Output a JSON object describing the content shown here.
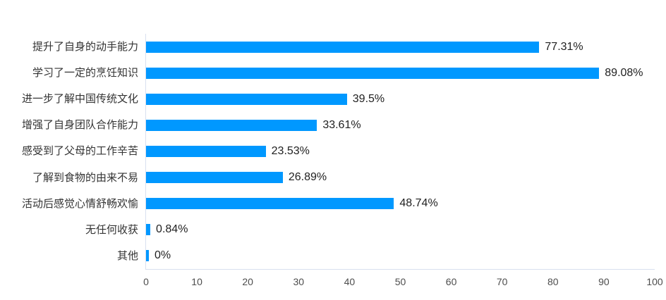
{
  "chart_data": {
    "type": "bar",
    "orientation": "horizontal",
    "title": "",
    "xlabel": "",
    "ylabel": "",
    "categories": [
      "提升了自身的动手能力",
      "学习了一定的烹饪知识",
      "进一步了解中国传统文化",
      "增强了自身团队合作能力",
      "感受到了父母的工作辛苦",
      "了解到食物的由来不易",
      "活动后感觉心情舒畅欢愉",
      "无任何收获",
      "其他"
    ],
    "values": [
      77.31,
      89.08,
      39.5,
      33.61,
      23.53,
      26.89,
      48.74,
      0.84,
      0
    ],
    "value_labels": [
      "77.31%",
      "89.08%",
      "39.5%",
      "33.61%",
      "23.53%",
      "26.89%",
      "48.74%",
      "0.84%",
      "0%"
    ],
    "xlim": [
      0,
      100
    ],
    "x_ticks": [
      0,
      10,
      20,
      30,
      40,
      50,
      60,
      70,
      80,
      90,
      100
    ],
    "grid": false,
    "legend": false,
    "colors": {
      "bar": "#0098ff",
      "axis_line": "#d9e0ef",
      "category_label": "#333333",
      "value_label": "#1f1f1f",
      "tick_label": "#4d4d4d",
      "background": "#ffffff"
    }
  }
}
